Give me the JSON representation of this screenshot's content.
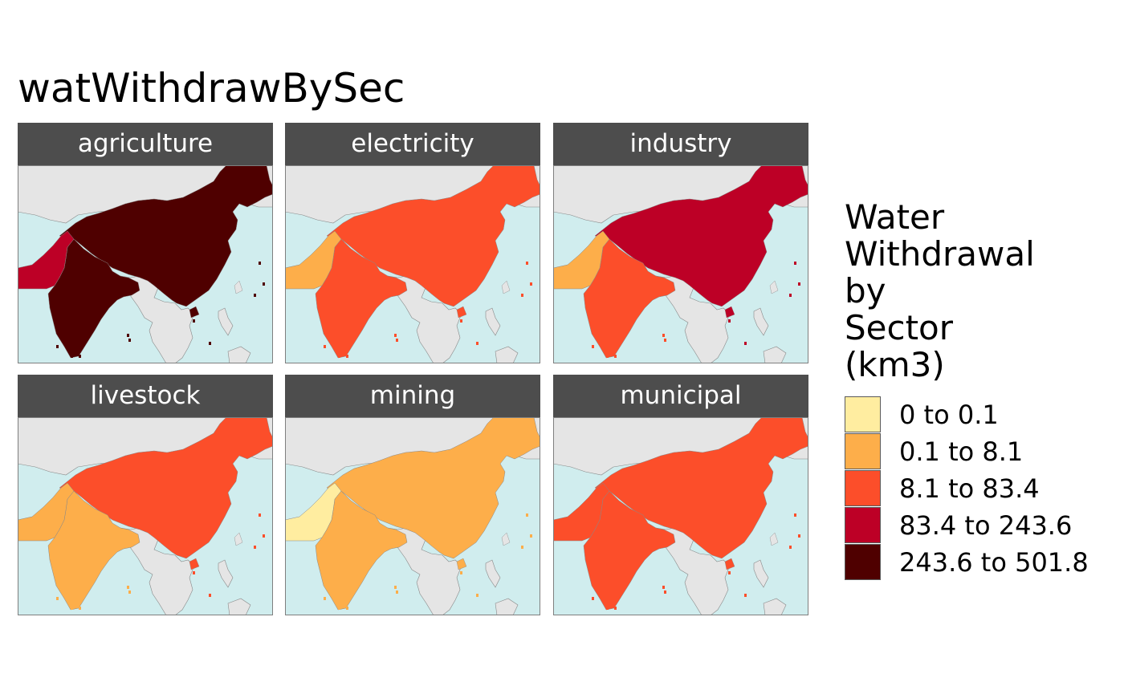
{
  "title": "watWithdrawBySec",
  "legend": {
    "title_lines": [
      "Water",
      "Withdrawal",
      "by",
      "Sector",
      "(km3)"
    ],
    "items": [
      {
        "label": "0 to 0.1",
        "color": "#FFEDA0"
      },
      {
        "label": "0.1 to 8.1",
        "color": "#FDAE4A"
      },
      {
        "label": "8.1 to 83.4",
        "color": "#FC4E2A"
      },
      {
        "label": "83.4 to 243.6",
        "color": "#BD0026"
      },
      {
        "label": "243.6 to 501.8",
        "color": "#4F0000"
      }
    ]
  },
  "map_colors": {
    "ocean": "#D0EDEE",
    "land": "#E5E5E5",
    "border": "#888888"
  },
  "panels": [
    {
      "label": "agriculture",
      "classes": {
        "china": 4,
        "india": 4,
        "pakistan": 3
      }
    },
    {
      "label": "electricity",
      "classes": {
        "china": 2,
        "india": 2,
        "pakistan": 1
      }
    },
    {
      "label": "industry",
      "classes": {
        "china": 3,
        "india": 2,
        "pakistan": 1
      }
    },
    {
      "label": "livestock",
      "classes": {
        "china": 2,
        "india": 1,
        "pakistan": 1
      }
    },
    {
      "label": "mining",
      "classes": {
        "china": 1,
        "india": 1,
        "pakistan": 0
      }
    },
    {
      "label": "municipal",
      "classes": {
        "china": 2,
        "india": 2,
        "pakistan": 2
      }
    }
  ]
}
